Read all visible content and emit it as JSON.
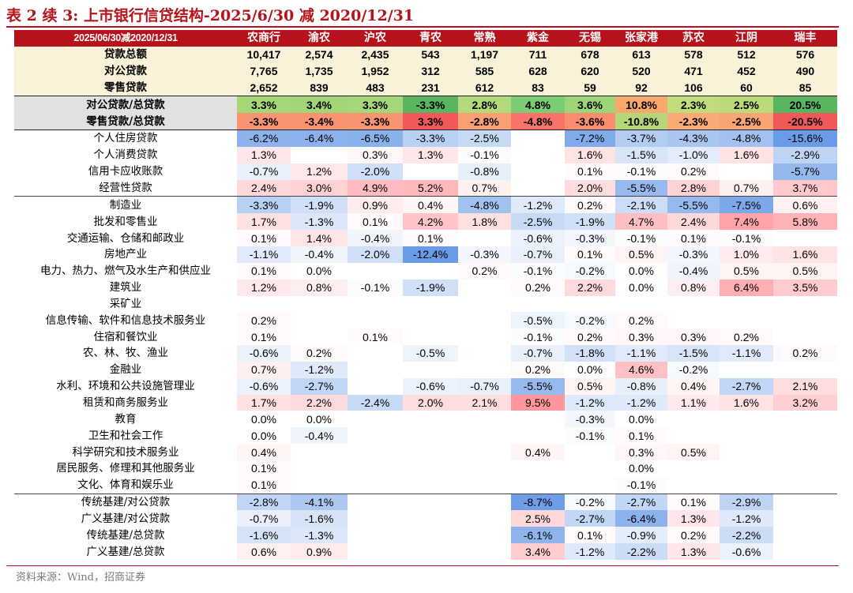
{
  "title": "表 2 续 3: 上市银行信贷结构-2025/6/30 减 2020/12/31",
  "corner_label": "2025/06/30减2020/12/31",
  "banks": [
    "农商行",
    "渝农",
    "沪农",
    "青农",
    "常熟",
    "紫金",
    "无锡",
    "张家港",
    "苏农",
    "江阴",
    "瑞丰"
  ],
  "source": "资料来源：Wind，招商证券",
  "colors": {
    "accent": "#b5121b",
    "cream": "#f9f2d9",
    "gray_label": "#e1e1e1"
  },
  "sections": [
    {
      "kind": "totals",
      "rows": [
        {
          "label": "贷款总额",
          "values": [
            "10,417",
            "2,574",
            "2,435",
            "543",
            "1,197",
            "711",
            "678",
            "613",
            "578",
            "512",
            "576"
          ]
        },
        {
          "label": "对公贷款",
          "values": [
            "7,765",
            "1,735",
            "1,952",
            "312",
            "585",
            "628",
            "620",
            "520",
            "471",
            "452",
            "490"
          ]
        },
        {
          "label": "零售贷款",
          "values": [
            "2,652",
            "839",
            "483",
            "231",
            "612",
            "83",
            "59",
            "92",
            "106",
            "60",
            "85"
          ]
        }
      ]
    },
    {
      "kind": "ratio",
      "rows": [
        {
          "label": "对公贷款/总贷款",
          "values": [
            "3.3%",
            "3.4%",
            "3.3%",
            "-3.3%",
            "2.8%",
            "4.8%",
            "3.6%",
            "10.8%",
            "2.3%",
            "2.5%",
            "20.5%"
          ]
        },
        {
          "label": "零售贷款/总贷款",
          "values": [
            "-3.3%",
            "-3.4%",
            "-3.3%",
            "3.3%",
            "-2.8%",
            "-4.8%",
            "-3.6%",
            "-10.8%",
            "-2.3%",
            "-2.5%",
            "-20.5%"
          ]
        }
      ]
    },
    {
      "kind": "heat",
      "rows": [
        {
          "label": "个人住房贷款",
          "values": [
            "-6.2%",
            "-6.4%",
            "-6.5%",
            "-3.3%",
            "-2.5%",
            "",
            "-7.2%",
            "-3.7%",
            "-4.3%",
            "-4.8%",
            "-15.6%"
          ]
        },
        {
          "label": "个人消费贷款",
          "values": [
            "1.3%",
            "",
            "0.3%",
            "1.3%",
            "-0.1%",
            "",
            "1.6%",
            "-1.5%",
            "-1.0%",
            "1.6%",
            "-2.9%"
          ]
        },
        {
          "label": "信用卡应收账款",
          "values": [
            "-0.7%",
            "1.2%",
            "-2.0%",
            "",
            "-0.8%",
            "",
            "0.1%",
            "-0.1%",
            "0.2%",
            "",
            "-5.7%"
          ]
        },
        {
          "label": "经营性贷款",
          "values": [
            "2.4%",
            "3.0%",
            "4.9%",
            "5.2%",
            "0.7%",
            "",
            "2.0%",
            "-5.5%",
            "2.8%",
            "0.7%",
            "3.7%"
          ]
        }
      ]
    },
    {
      "kind": "heat",
      "rows": [
        {
          "label": "制造业",
          "values": [
            "-3.3%",
            "-1.9%",
            "0.9%",
            "0.4%",
            "-4.8%",
            "-1.2%",
            "0.2%",
            "-2.1%",
            "-5.5%",
            "-7.5%",
            "0.6%"
          ]
        },
        {
          "label": "批发和零售业",
          "values": [
            "1.7%",
            "-1.3%",
            "0.1%",
            "4.2%",
            "1.8%",
            "-2.5%",
            "-1.9%",
            "4.7%",
            "2.4%",
            "7.4%",
            "5.8%"
          ]
        },
        {
          "label": "交通运输、仓储和邮政业",
          "values": [
            "0.1%",
            "1.4%",
            "-0.4%",
            "0.1%",
            "",
            "-0.6%",
            "-0.3%",
            "-0.1%",
            "0.1%",
            "-0.1%",
            ""
          ]
        },
        {
          "label": "房地产业",
          "values": [
            "-1.1%",
            "-0.4%",
            "-2.0%",
            "-12.4%",
            "-0.3%",
            "-0.7%",
            "0.1%",
            "0.5%",
            "-0.3%",
            "1.0%",
            "1.6%"
          ]
        },
        {
          "label": "电力、热力、燃气及水生产和供应业",
          "values": [
            "0.1%",
            "0.0%",
            "",
            "",
            "0.2%",
            "-0.1%",
            "-0.2%",
            "0.0%",
            "-0.4%",
            "0.5%",
            "0.5%"
          ]
        },
        {
          "label": "建筑业",
          "values": [
            "1.2%",
            "0.8%",
            "-0.1%",
            "-1.9%",
            "",
            "0.2%",
            "2.2%",
            "0.0%",
            "0.8%",
            "6.4%",
            "3.5%"
          ]
        },
        {
          "label": "采矿业",
          "values": [
            "",
            "",
            "",
            "",
            "",
            "",
            "",
            "",
            "",
            "",
            ""
          ]
        },
        {
          "label": "信息传输、软件和信息技术服务业",
          "values": [
            "0.2%",
            "",
            "",
            "",
            "",
            "-0.5%",
            "-0.2%",
            "0.2%",
            "",
            "",
            ""
          ]
        },
        {
          "label": "住宿和餐饮业",
          "values": [
            "0.1%",
            "",
            "0.1%",
            "",
            "",
            "-0.1%",
            "0.2%",
            "0.3%",
            "0.3%",
            "0.2%",
            ""
          ]
        },
        {
          "label": "农、林、牧、渔业",
          "values": [
            "-0.6%",
            "0.2%",
            "",
            "-0.5%",
            "",
            "-0.7%",
            "-1.8%",
            "-1.1%",
            "-1.5%",
            "-1.1%",
            "0.2%"
          ]
        },
        {
          "label": "金融业",
          "values": [
            "0.7%",
            "-1.2%",
            "",
            "",
            "",
            "0.2%",
            "0.0%",
            "4.6%",
            "-0.2%",
            "",
            ""
          ]
        },
        {
          "label": "水利、环境和公共设施管理业",
          "values": [
            "-0.6%",
            "-2.7%",
            "",
            "-0.6%",
            "-0.7%",
            "-5.5%",
            "0.5%",
            "-0.8%",
            "0.4%",
            "-2.7%",
            "2.1%"
          ]
        },
        {
          "label": "租赁和商务服务业",
          "values": [
            "1.7%",
            "2.2%",
            "-2.4%",
            "2.0%",
            "2.1%",
            "9.5%",
            "-1.2%",
            "-1.2%",
            "1.1%",
            "1.6%",
            "3.2%"
          ]
        },
        {
          "label": "教育",
          "values": [
            "0.0%",
            "0.0%",
            "",
            "",
            "",
            "",
            "-0.3%",
            "0.0%",
            "",
            "",
            ""
          ]
        },
        {
          "label": "卫生和社会工作",
          "values": [
            "0.0%",
            "-0.4%",
            "",
            "",
            "",
            "",
            "-0.1%",
            "0.1%",
            "",
            "",
            ""
          ]
        },
        {
          "label": "科学研究和技术服务业",
          "values": [
            "0.4%",
            "",
            "",
            "",
            "",
            "0.4%",
            "",
            "0.3%",
            "0.5%",
            "",
            ""
          ]
        },
        {
          "label": "居民服务、修理和其他服务业",
          "values": [
            "0.1%",
            "",
            "",
            "",
            "",
            "",
            "",
            "0.0%",
            "",
            "",
            ""
          ]
        },
        {
          "label": "文化、体育和娱乐业",
          "values": [
            "0.1%",
            "",
            "",
            "",
            "",
            "",
            "",
            "-0.1%",
            "",
            "",
            ""
          ]
        }
      ]
    },
    {
      "kind": "heat",
      "rows": [
        {
          "label": "传统基建/对公贷款",
          "values": [
            "-2.8%",
            "-4.1%",
            "",
            "",
            "",
            "-8.7%",
            "-0.2%",
            "-2.7%",
            "0.1%",
            "-2.9%",
            ""
          ]
        },
        {
          "label": "广义基建/对公贷款",
          "values": [
            "-0.7%",
            "-1.6%",
            "",
            "",
            "",
            "2.5%",
            "-2.7%",
            "-6.4%",
            "1.3%",
            "-1.2%",
            ""
          ]
        },
        {
          "label": "传统基建/总贷款",
          "values": [
            "-1.6%",
            "-1.3%",
            "",
            "",
            "",
            "-6.1%",
            "0.1%",
            "-0.9%",
            "0.2%",
            "-2.2%",
            ""
          ]
        },
        {
          "label": "广义基建/总贷款",
          "values": [
            "0.6%",
            "0.9%",
            "",
            "",
            "",
            "3.4%",
            "-1.2%",
            "-2.2%",
            "1.3%",
            "-0.6%",
            ""
          ]
        }
      ]
    }
  ]
}
